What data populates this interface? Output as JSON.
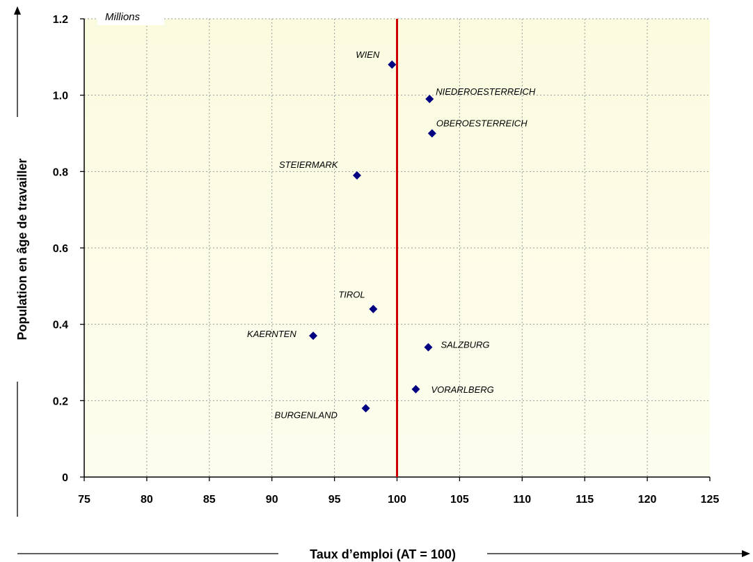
{
  "chart_data": {
    "type": "scatter",
    "title": "",
    "xlabel": "Taux d’emploi (AT = 100)",
    "ylabel": "Population en âge de travailler",
    "yunit": "Millions",
    "xlim": [
      75,
      125
    ],
    "ylim": [
      0,
      1.2
    ],
    "xticks": [
      75,
      80,
      85,
      90,
      95,
      100,
      105,
      110,
      115,
      120,
      125
    ],
    "yticks": [
      0,
      0.2,
      0.4,
      0.6,
      0.8,
      1.0,
      1.2
    ],
    "ytick_labels": [
      "0",
      "0.2",
      "0.4",
      "0.6",
      "0.8",
      "1.0",
      "1.2"
    ],
    "reference_line": {
      "x": 100,
      "color": "#cc0000"
    },
    "grid": "dotted",
    "marker_color": "#000080",
    "points": [
      {
        "label": "WIEN",
        "x": 99.6,
        "y": 1.08
      },
      {
        "label": "NIEDEROESTERREICH",
        "x": 102.6,
        "y": 0.99
      },
      {
        "label": "OBEROESTERREICH",
        "x": 102.8,
        "y": 0.9
      },
      {
        "label": "STEIERMARK",
        "x": 96.8,
        "y": 0.79
      },
      {
        "label": "TIROL",
        "x": 98.1,
        "y": 0.44
      },
      {
        "label": "KAERNTEN",
        "x": 93.3,
        "y": 0.37
      },
      {
        "label": "SALZBURG",
        "x": 102.5,
        "y": 0.34
      },
      {
        "label": "VORARLBERG",
        "x": 101.5,
        "y": 0.23
      },
      {
        "label": "BURGENLAND",
        "x": 97.5,
        "y": 0.18
      }
    ]
  }
}
